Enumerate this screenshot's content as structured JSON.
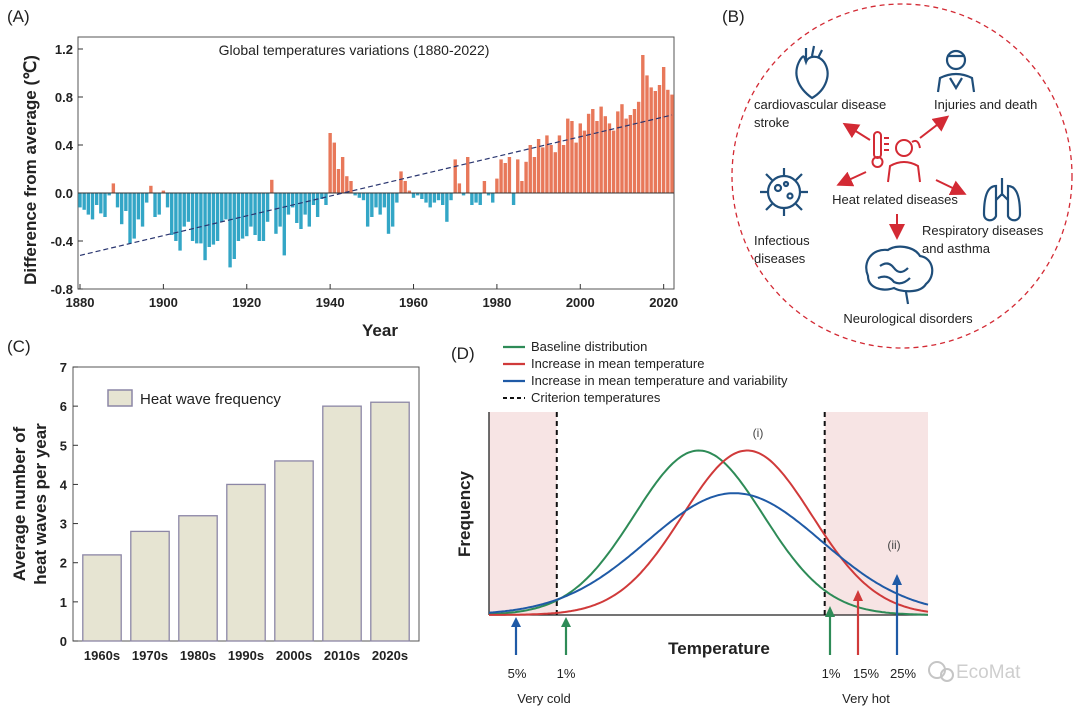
{
  "panels": {
    "a": "(A)",
    "b": "(B)",
    "c": "(C)",
    "d": "(D)"
  },
  "watermark": "EcoMat",
  "colors": {
    "warm_bar": "#e8785a",
    "cool_bar": "#33a6c6",
    "trend": "#2a3670",
    "heat_red": "#d32a34",
    "icon_blue": "#1f4e7a",
    "hist_fill": "#e6e4d2",
    "hist_edge": "#8c86a6",
    "shade": "#f7e4e4",
    "green": "#2e8b57",
    "red": "#d03a3a",
    "blue": "#1f5aa6"
  },
  "chart_data": [
    {
      "type": "bar",
      "title": "Global temperatures variations (1880-2022)",
      "xlabel": "Year",
      "ylabel": "Difference from average (℃)",
      "xlim": [
        1880,
        2022
      ],
      "ylim": [
        -0.8,
        1.3
      ],
      "xticks": [
        "1880",
        "1900",
        "1920",
        "1940",
        "1960",
        "1980",
        "2000",
        "2020"
      ],
      "yticks": [
        "-0.8",
        "-0.4",
        "0.0",
        "0.4",
        "0.8",
        "1.2"
      ],
      "years": [
        1880,
        1881,
        1882,
        1883,
        1884,
        1885,
        1886,
        1887,
        1888,
        1889,
        1890,
        1891,
        1892,
        1893,
        1894,
        1895,
        1896,
        1897,
        1898,
        1899,
        1900,
        1901,
        1902,
        1903,
        1904,
        1905,
        1906,
        1907,
        1908,
        1909,
        1910,
        1911,
        1912,
        1913,
        1914,
        1915,
        1916,
        1917,
        1918,
        1919,
        1920,
        1921,
        1922,
        1923,
        1924,
        1925,
        1926,
        1927,
        1928,
        1929,
        1930,
        1931,
        1932,
        1933,
        1934,
        1935,
        1936,
        1937,
        1938,
        1939,
        1940,
        1941,
        1942,
        1943,
        1944,
        1945,
        1946,
        1947,
        1948,
        1949,
        1950,
        1951,
        1952,
        1953,
        1954,
        1955,
        1956,
        1957,
        1958,
        1959,
        1960,
        1961,
        1962,
        1963,
        1964,
        1965,
        1966,
        1967,
        1968,
        1969,
        1970,
        1971,
        1972,
        1973,
        1974,
        1975,
        1976,
        1977,
        1978,
        1979,
        1980,
        1981,
        1982,
        1983,
        1984,
        1985,
        1986,
        1987,
        1988,
        1989,
        1990,
        1991,
        1992,
        1993,
        1994,
        1995,
        1996,
        1997,
        1998,
        1999,
        2000,
        2001,
        2002,
        2003,
        2004,
        2005,
        2006,
        2007,
        2008,
        2009,
        2010,
        2011,
        2012,
        2013,
        2014,
        2015,
        2016,
        2017,
        2018,
        2019,
        2020,
        2021,
        2022
      ],
      "values": [
        -0.12,
        -0.14,
        -0.18,
        -0.22,
        -0.1,
        -0.17,
        -0.2,
        -0.02,
        0.08,
        -0.12,
        -0.26,
        -0.15,
        -0.42,
        -0.38,
        -0.22,
        -0.28,
        -0.08,
        0.06,
        -0.2,
        -0.18,
        0.02,
        -0.12,
        -0.35,
        -0.4,
        -0.48,
        -0.28,
        -0.24,
        -0.4,
        -0.42,
        -0.42,
        -0.56,
        -0.45,
        -0.43,
        -0.4,
        -0.24,
        -0.22,
        -0.62,
        -0.55,
        -0.4,
        -0.38,
        -0.36,
        -0.28,
        -0.35,
        -0.4,
        -0.4,
        -0.24,
        0.11,
        -0.34,
        -0.28,
        -0.52,
        -0.18,
        -0.12,
        -0.25,
        -0.3,
        -0.18,
        -0.28,
        -0.1,
        -0.2,
        -0.05,
        -0.1,
        0.5,
        0.42,
        0.2,
        0.3,
        0.14,
        0.1,
        -0.02,
        -0.04,
        -0.06,
        -0.28,
        -0.2,
        -0.12,
        -0.18,
        -0.12,
        -0.34,
        -0.28,
        -0.08,
        0.18,
        0.1,
        0.02,
        -0.04,
        -0.02,
        -0.05,
        -0.08,
        -0.12,
        -0.08,
        -0.06,
        -0.1,
        -0.24,
        -0.06,
        0.28,
        0.08,
        -0.02,
        0.3,
        -0.1,
        -0.08,
        -0.1,
        0.1,
        -0.02,
        -0.08,
        0.12,
        0.28,
        0.25,
        0.3,
        -0.1,
        0.28,
        0.1,
        0.26,
        0.4,
        0.3,
        0.45,
        0.38,
        0.48,
        0.4,
        0.34,
        0.48,
        0.4,
        0.62,
        0.6,
        0.42,
        0.58,
        0.52,
        0.66,
        0.7,
        0.6,
        0.72,
        0.64,
        0.58,
        0.52,
        0.68,
        0.74,
        0.62,
        0.65,
        0.7,
        0.76,
        1.15,
        0.98,
        0.88,
        0.85,
        0.9,
        1.05,
        0.86,
        0.82
      ],
      "trend": {
        "from": [
          1880,
          -0.52
        ],
        "to": [
          2022,
          0.65
        ]
      }
    },
    {
      "type": "bar",
      "categories": [
        "1960s",
        "1970s",
        "1980s",
        "1990s",
        "2000s",
        "2010s",
        "2020s"
      ],
      "values": [
        2.2,
        2.8,
        3.2,
        4.0,
        4.6,
        6.0,
        6.1
      ],
      "legend": "Heat wave frequency",
      "ylabel_lines": [
        "Average number of",
        "heat waves per year"
      ],
      "ylim": [
        0,
        7
      ],
      "yticks": [
        "0",
        "1",
        "2",
        "3",
        "4",
        "5",
        "6",
        "7"
      ]
    },
    {
      "type": "line",
      "xlabel": "Temperature",
      "ylabel": "Frequency",
      "series": [
        {
          "name": "Baseline distribution",
          "mean": 0.0,
          "sd": 1.0
        },
        {
          "name": "Increase in mean temperature",
          "mean": 0.75,
          "sd": 1.0
        },
        {
          "name": "Increase in mean temperature and variability",
          "mean": 0.55,
          "sd": 1.35
        }
      ],
      "criterion": {
        "name": "Criterion temperatures",
        "cold": -2.2,
        "hot": 1.95
      },
      "xrange": [
        -3.25,
        3.55
      ],
      "marks": {
        "i": "(i)",
        "ii": "(ii)"
      },
      "cold_pcts": [
        "5%",
        "1%"
      ],
      "hot_pcts": [
        "1%",
        "15%",
        "25%"
      ],
      "cold_label": "Very cold",
      "hot_label": "Very hot"
    }
  ],
  "diagram_b": {
    "center": "Heat related diseases",
    "nodes": {
      "cardio1": "cardiovascular disease",
      "cardio2": "stroke",
      "injury": "Injuries and death",
      "infect1": "Infectious",
      "infect2": "diseases",
      "resp1": "Respiratory diseases",
      "resp2": "and asthma",
      "neuro": "Neurological disorders"
    }
  }
}
